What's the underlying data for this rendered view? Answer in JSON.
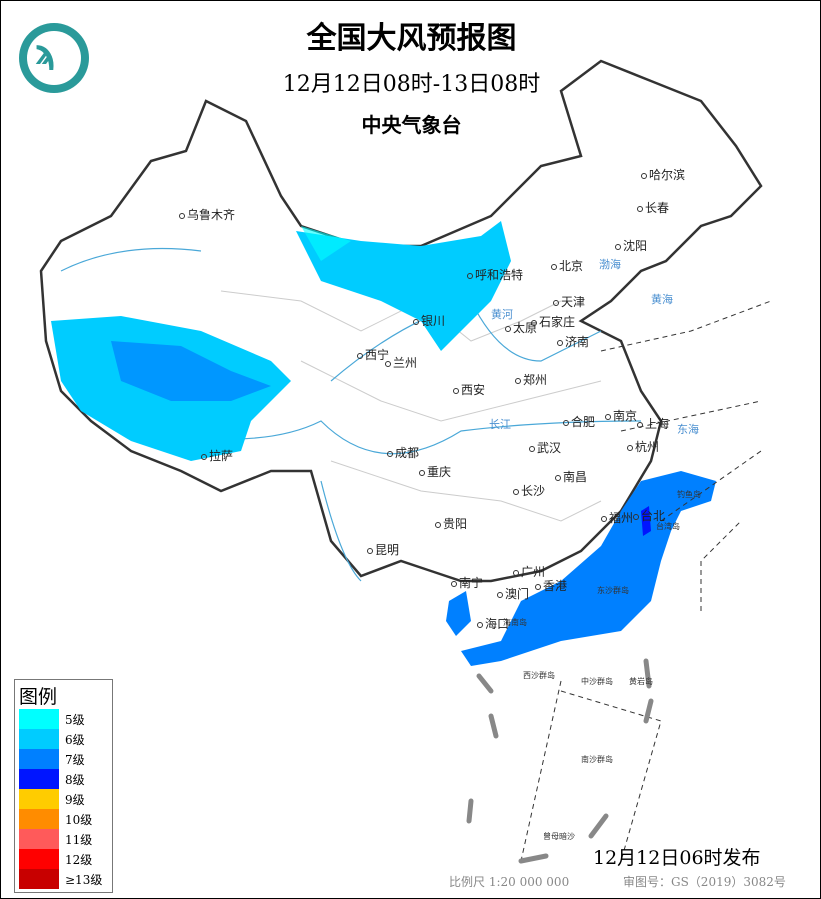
{
  "header": {
    "title": "全国大风预报图",
    "period": "12月12日08时-13日08时",
    "agency": "中央气象台"
  },
  "legend": {
    "title": "图例",
    "items": [
      {
        "label": "5级",
        "color": "#00ffff"
      },
      {
        "label": "6级",
        "color": "#00ccff"
      },
      {
        "label": "7级",
        "color": "#0080ff"
      },
      {
        "label": "8级",
        "color": "#0015ff"
      },
      {
        "label": "9级",
        "color": "#ffcc00"
      },
      {
        "label": "10级",
        "color": "#ff8c00"
      },
      {
        "label": "11级",
        "color": "#ff5a5a"
      },
      {
        "label": "12级",
        "color": "#ff0000"
      },
      {
        "label": "≥13级",
        "color": "#c80000"
      }
    ]
  },
  "cities": [
    "乌鲁木齐",
    "哈尔滨",
    "长春",
    "沈阳",
    "呼和浩特",
    "北京",
    "天津",
    "银川",
    "太原",
    "石家庄",
    "济南",
    "西宁",
    "兰州",
    "郑州",
    "西安",
    "合肥",
    "南京",
    "上海",
    "拉萨",
    "成都",
    "武汉",
    "杭州",
    "重庆",
    "长沙",
    "南昌",
    "福州",
    "台北",
    "贵阳",
    "昆明",
    "南宁",
    "广州",
    "澳门",
    "香港",
    "海口"
  ],
  "places": [
    "台湾岛",
    "海南岛",
    "东沙群岛",
    "西沙群岛",
    "中沙群岛",
    "黄岩岛",
    "南沙群岛",
    "曾母暗沙",
    "钓鱼岛"
  ],
  "seas": [
    "渤海",
    "黄海",
    "东海",
    "长江",
    "黄河"
  ],
  "footer": {
    "issued": "12月12日06时发布",
    "scale": "比例尺 1:20 000 000",
    "approval": "审图号：GS（2019）3082号"
  }
}
